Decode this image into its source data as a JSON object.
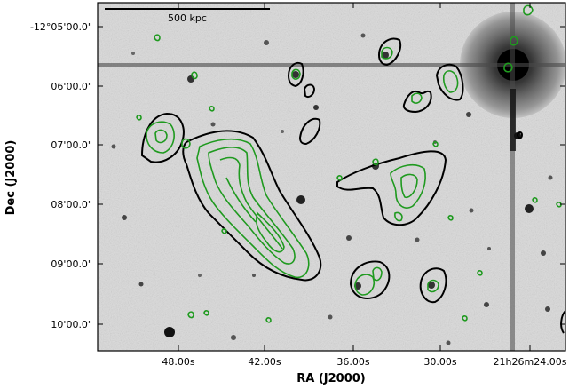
{
  "scale_bar": {
    "label": "500 kpc"
  },
  "x_axis": {
    "label": "RA (J2000)",
    "ticks": [
      "48.00s",
      "42.00s",
      "36.00s",
      "30.00s",
      "21h26m24.00s"
    ]
  },
  "y_axis": {
    "label": "Dec (J2000)",
    "ticks": [
      "-12°05'00.0\"",
      "06'00.0\"",
      "07'00.0\"",
      "08'00.0\"",
      "09'00.0\"",
      "10'00.0\""
    ]
  },
  "colors": {
    "background_image": "#d9d9d9",
    "black_contours": "#000000",
    "green_contours": "#1f9a1f"
  }
}
